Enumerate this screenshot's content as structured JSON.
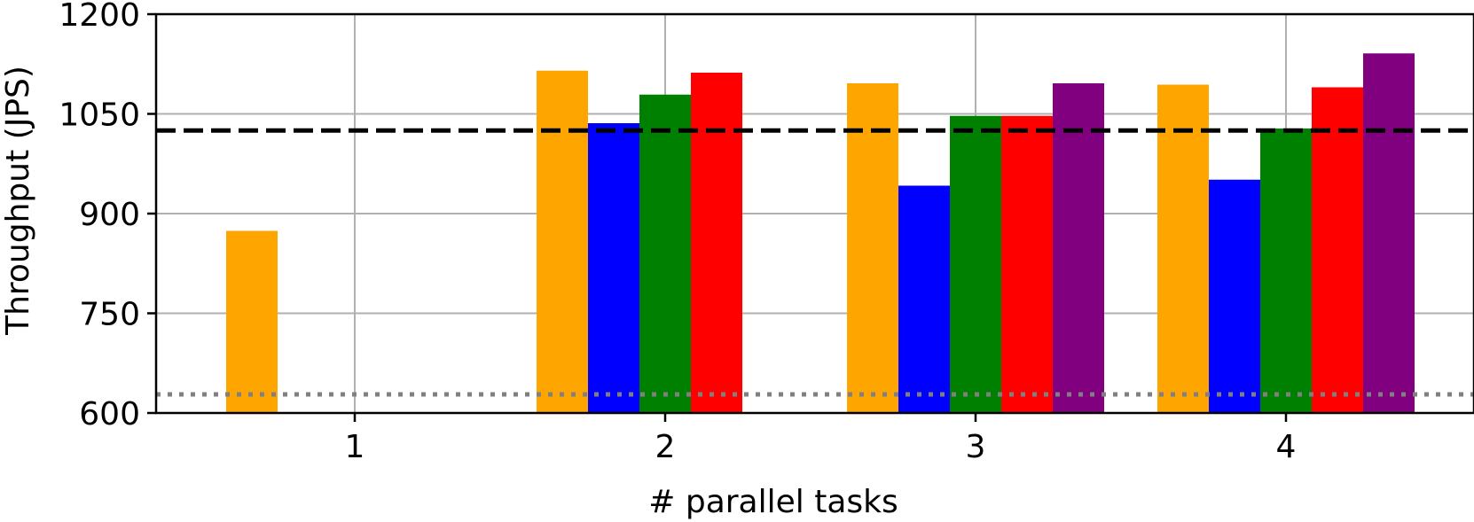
{
  "chart_data": {
    "type": "bar",
    "xlabel": "# parallel tasks",
    "ylabel": "Throughput (JPS)",
    "ylim": [
      600,
      1200
    ],
    "yticks": [
      "600",
      "750",
      "900",
      "1050",
      "1200"
    ],
    "categories": [
      "1",
      "2",
      "3",
      "4"
    ],
    "grid": true,
    "legend": "none",
    "colors": [
      "#ffa500",
      "#0000ff",
      "#008000",
      "#ff0000",
      "#800080"
    ],
    "series": [
      {
        "values": [
          874,
          1115,
          1096,
          1094
        ]
      },
      {
        "values": [
          null,
          1036,
          942,
          951
        ]
      },
      {
        "values": [
          null,
          1079,
          1047,
          1028
        ]
      },
      {
        "values": [
          null,
          1112,
          1047,
          1090
        ]
      },
      {
        "values": [
          null,
          null,
          1096,
          1141
        ]
      }
    ],
    "reference_lines": [
      {
        "style": "dashed",
        "color": "#000000",
        "value": 1025
      },
      {
        "style": "dotted",
        "color": "#808080",
        "value": 628
      }
    ]
  }
}
